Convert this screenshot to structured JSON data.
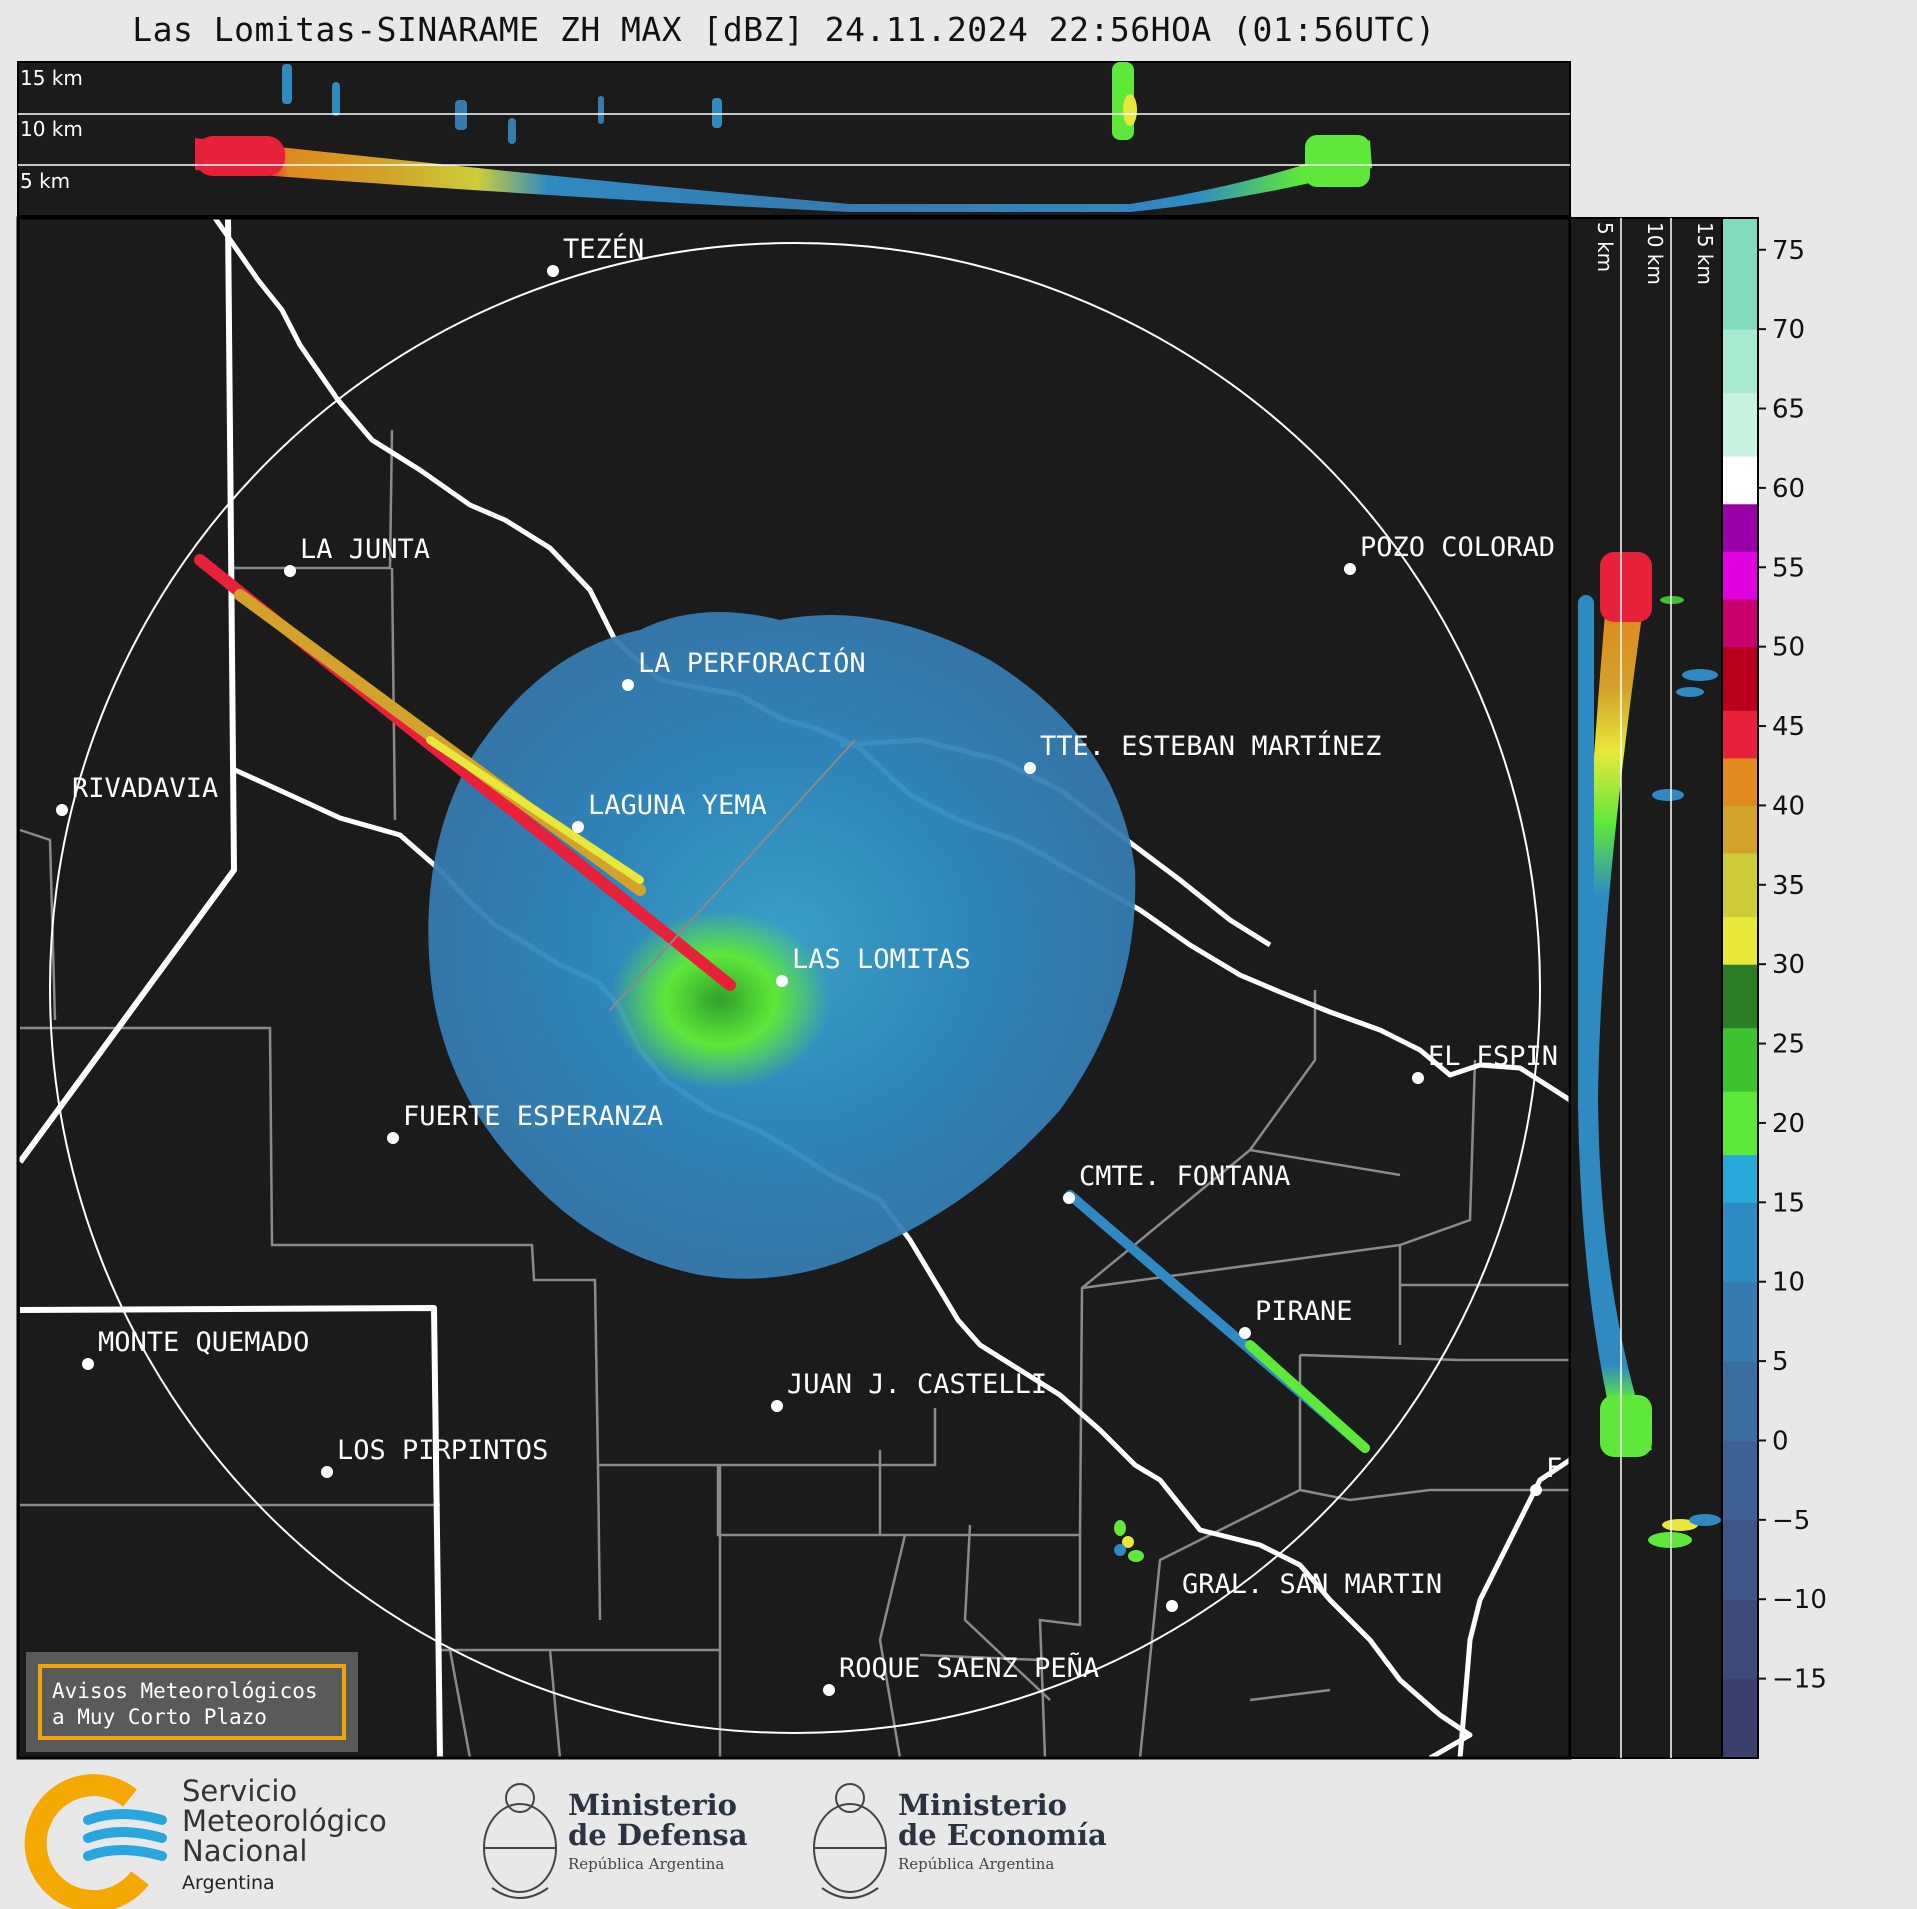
{
  "title": "Las Lomitas-SINARAME ZH MAX [dBZ] 24.11.2024 22:56HOA (01:56UTC)",
  "top_profile": {
    "altitude_labels": [
      "15 km",
      "10 km",
      "5 km"
    ]
  },
  "side_profile": {
    "altitude_labels": [
      "5 km",
      "10 km",
      "15 km"
    ]
  },
  "colorbar": {
    "unit": "dBZ",
    "ticks": [
      "75",
      "70",
      "65",
      "60",
      "55",
      "50",
      "45",
      "40",
      "35",
      "30",
      "25",
      "20",
      "15",
      "10",
      "5",
      "0",
      "−5",
      "−10",
      "−15"
    ],
    "range": [
      -20,
      77
    ],
    "bands": [
      {
        "from": -20,
        "to": -15,
        "color": "#3b3f6e"
      },
      {
        "from": -15,
        "to": -10,
        "color": "#3d4a7a"
      },
      {
        "from": -10,
        "to": -5,
        "color": "#3e5587"
      },
      {
        "from": -5,
        "to": 0,
        "color": "#3d6194"
      },
      {
        "from": 0,
        "to": 5,
        "color": "#3a6ea0"
      },
      {
        "from": 5,
        "to": 10,
        "color": "#367bb0"
      },
      {
        "from": 10,
        "to": 15,
        "color": "#2f8ac2"
      },
      {
        "from": 15,
        "to": 18,
        "color": "#26a8d8"
      },
      {
        "from": 18,
        "to": 22,
        "color": "#5ee83a"
      },
      {
        "from": 22,
        "to": 26,
        "color": "#3fc230"
      },
      {
        "from": 26,
        "to": 30,
        "color": "#2a7d24"
      },
      {
        "from": 30,
        "to": 33,
        "color": "#e8e83a"
      },
      {
        "from": 33,
        "to": 37,
        "color": "#cdcd3a"
      },
      {
        "from": 37,
        "to": 40,
        "color": "#d2a22a"
      },
      {
        "from": 40,
        "to": 43,
        "color": "#e08a1e"
      },
      {
        "from": 43,
        "to": 46,
        "color": "#e8203a"
      },
      {
        "from": 46,
        "to": 50,
        "color": "#b8001e"
      },
      {
        "from": 50,
        "to": 53,
        "color": "#c8006e"
      },
      {
        "from": 53,
        "to": 56,
        "color": "#e000e0"
      },
      {
        "from": 56,
        "to": 59,
        "color": "#9a00a8"
      },
      {
        "from": 59,
        "to": 62,
        "color": "#ffffff"
      },
      {
        "from": 62,
        "to": 66,
        "color": "#c8f2e0"
      },
      {
        "from": 66,
        "to": 70,
        "color": "#a8ead0"
      },
      {
        "from": 70,
        "to": 77,
        "color": "#80dcbc"
      }
    ]
  },
  "cities": [
    {
      "name": "TEZÉN"
    },
    {
      "name": "LA JUNTA"
    },
    {
      "name": "POZO COLORAD"
    },
    {
      "name": "LA PERFORACIÓN"
    },
    {
      "name": "TTE. ESTEBAN MARTÍNEZ"
    },
    {
      "name": "RIVADAVIA"
    },
    {
      "name": "LAGUNA YEMA"
    },
    {
      "name": "LAS LOMITAS"
    },
    {
      "name": "EL ESPIN"
    },
    {
      "name": "FUERTE ESPERANZA"
    },
    {
      "name": "CMTE. FONTANA"
    },
    {
      "name": "PIRANE"
    },
    {
      "name": "MONTE QUEMADO"
    },
    {
      "name": "JUAN J. CASTELLI"
    },
    {
      "name": "LOS PIRPINTOS"
    },
    {
      "name": "F"
    },
    {
      "name": "GRAL. SAN MARTIN"
    },
    {
      "name": "ROQUE SAENZ PEÑA"
    }
  ],
  "aviso": {
    "line1": "Avisos Meteorológicos",
    "line2": "a Muy Corto Plazo"
  },
  "logos": {
    "smn_line1": "Servicio",
    "smn_line2": "Meteorológico",
    "smn_line3": "Nacional",
    "smn_country": "Argentina",
    "defensa_line1": "Ministerio",
    "defensa_line2": "de Defensa",
    "defensa_sub": "República Argentina",
    "economia_line1": "Ministerio",
    "economia_line2": "de Economía",
    "economia_sub": "República Argentina"
  },
  "colors": {
    "map_background": "#1b1b1b",
    "echo_blue": "#367bb0",
    "echo_green": "#5ee83a",
    "border_white": "#ffffff",
    "dept_lines": "#8a8a8a",
    "aviso_border": "#f0a30a"
  }
}
